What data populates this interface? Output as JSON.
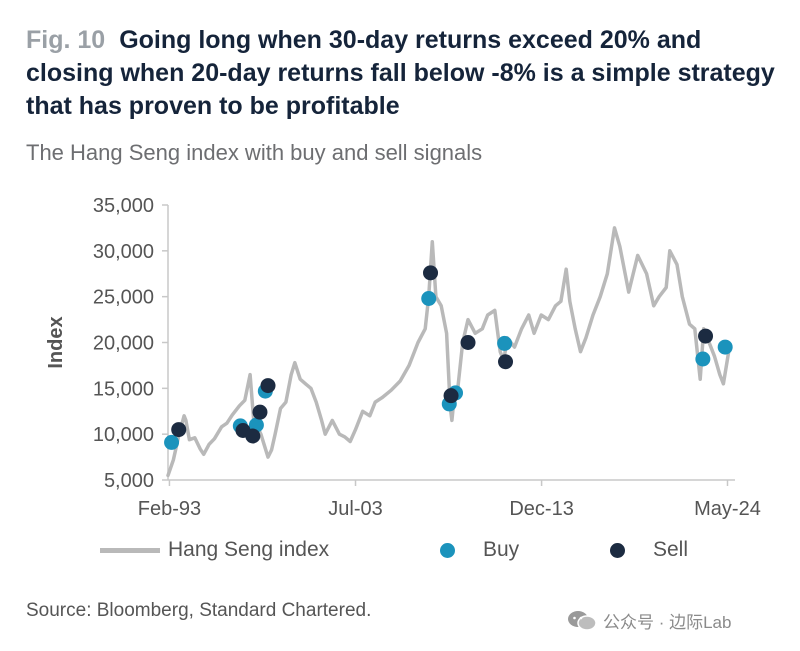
{
  "header": {
    "fig_label": "Fig. 10",
    "title": "Going long when 30-day returns exceed 20% and closing when 20-day returns fall below -8% is a simple strategy that has proven to be profitable",
    "subtitle": "The Hang Seng index with buy and sell signals"
  },
  "footer": {
    "source": "Source: Bloomberg, Standard Chartered.",
    "watermark": "公众号 · 边际Lab",
    "watermark_icon": "wechat-icon"
  },
  "legend": {
    "placement": "bottom",
    "line_label": "Hang Seng index",
    "buy_label": "Buy",
    "sell_label": "Sell"
  },
  "colors": {
    "index_line": "#b9b9b9",
    "buy": "#1b93bc",
    "sell": "#1c2b41",
    "axis": "#c8c8c8",
    "text": "#555555",
    "title": "#15243a"
  },
  "chart_data": {
    "type": "line",
    "title": "Going long when 30-day returns exceed 20% and closing when 20-day returns fall below -8% is a simple strategy that has proven to be profitable",
    "subtitle": "The Hang Seng index with buy and sell signals",
    "xlabel": "",
    "ylabel": "Index",
    "x_range": [
      1993.0,
      2024.75
    ],
    "ylim": [
      5000,
      35000
    ],
    "y_ticks": [
      5000,
      10000,
      15000,
      20000,
      25000,
      30000,
      35000
    ],
    "y_tick_labels": [
      "5,000",
      "10,000",
      "15,000",
      "20,000",
      "25,000",
      "30,000",
      "35,000"
    ],
    "x_ticks": [
      1993.08,
      2003.5,
      2013.92,
      2024.33
    ],
    "x_tick_labels": [
      "Feb-93",
      "Jul-03",
      "Dec-13",
      "May-24"
    ],
    "grid": false,
    "series": [
      {
        "name": "Hang Seng index",
        "kind": "line",
        "x": [
          1993.0,
          1993.3,
          1993.6,
          1993.9,
          1994.0,
          1994.2,
          1994.5,
          1994.8,
          1995.0,
          1995.3,
          1995.6,
          1996.0,
          1996.3,
          1996.6,
          1997.0,
          1997.3,
          1997.6,
          1997.8,
          1997.95,
          1998.2,
          1998.6,
          1998.8,
          1999.0,
          1999.3,
          1999.6,
          1999.9,
          2000.1,
          2000.4,
          2000.7,
          2001.0,
          2001.3,
          2001.6,
          2001.8,
          2002.2,
          2002.6,
          2002.9,
          2003.2,
          2003.5,
          2003.9,
          2004.3,
          2004.6,
          2005.0,
          2005.5,
          2006.0,
          2006.5,
          2007.0,
          2007.4,
          2007.6,
          2007.8,
          2008.0,
          2008.3,
          2008.6,
          2008.8,
          2008.9,
          2009.0,
          2009.2,
          2009.5,
          2009.8,
          2010.2,
          2010.6,
          2010.9,
          2011.3,
          2011.6,
          2011.8,
          2012.0,
          2012.4,
          2012.8,
          2013.2,
          2013.5,
          2013.9,
          2014.3,
          2014.7,
          2015.0,
          2015.3,
          2015.5,
          2015.8,
          2016.1,
          2016.4,
          2016.8,
          2017.2,
          2017.6,
          2018.0,
          2018.3,
          2018.8,
          2019.3,
          2019.8,
          2020.2,
          2020.5,
          2020.9,
          2021.1,
          2021.5,
          2021.8,
          2022.2,
          2022.5,
          2022.8,
          2023.0,
          2023.3,
          2023.6,
          2023.9,
          2024.1,
          2024.4
        ],
        "values": [
          5500,
          7200,
          9800,
          12000,
          11500,
          9400,
          9600,
          8400,
          7800,
          8900,
          9500,
          10800,
          11200,
          12100,
          13100,
          13700,
          16500,
          11500,
          11000,
          10000,
          7500,
          8300,
          10000,
          12800,
          13500,
          16500,
          17800,
          16000,
          15500,
          15000,
          13500,
          11500,
          10000,
          11500,
          10000,
          9700,
          9200,
          10500,
          12500,
          12000,
          13500,
          14000,
          14800,
          15800,
          17500,
          20000,
          21500,
          25000,
          31000,
          25000,
          24000,
          21000,
          13000,
          11500,
          13500,
          14500,
          20000,
          22500,
          21000,
          21500,
          23000,
          23500,
          19000,
          18000,
          20500,
          19500,
          21500,
          23000,
          21000,
          23000,
          22500,
          24000,
          24500,
          28000,
          24500,
          21500,
          19000,
          20500,
          23000,
          25000,
          27500,
          32500,
          30500,
          25500,
          29500,
          27500,
          24000,
          25000,
          26000,
          30000,
          28500,
          25000,
          22000,
          21500,
          16000,
          21500,
          20000,
          18500,
          16500,
          15500,
          19000
        ]
      },
      {
        "name": "Buy",
        "kind": "scatter",
        "x": [
          1993.2,
          1997.05,
          1997.95,
          1998.45,
          2007.6,
          2008.75,
          2009.1,
          2011.85,
          2022.95,
          2024.2
        ],
        "values": [
          9100,
          10900,
          11000,
          14700,
          24800,
          13300,
          14500,
          19900,
          18200,
          19500
        ]
      },
      {
        "name": "Sell",
        "kind": "scatter",
        "x": [
          1993.6,
          1997.2,
          1997.75,
          1998.15,
          1998.6,
          2007.7,
          2008.85,
          2009.8,
          2011.9,
          2023.1
        ],
        "values": [
          10500,
          10400,
          9800,
          12400,
          15300,
          27600,
          14200,
          20000,
          17900,
          20700
        ]
      }
    ]
  }
}
